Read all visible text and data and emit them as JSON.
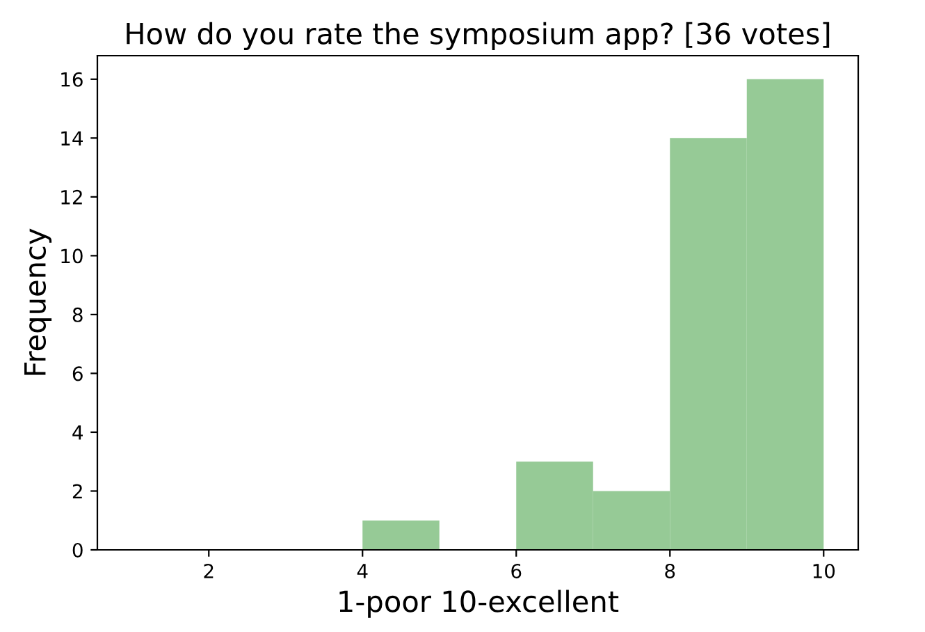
{
  "chart_data": {
    "type": "histogram",
    "title": "How do you rate the symposium app? [36 votes]",
    "xlabel": "1-poor 10-excellent",
    "ylabel": "Frequency",
    "bins": [
      1,
      2,
      3,
      4,
      5,
      6,
      7,
      8,
      9,
      10
    ],
    "values": [
      0,
      0,
      0,
      1,
      0,
      3,
      2,
      14,
      16
    ],
    "color": "#96ca96",
    "xlim": [
      0.55,
      10.45
    ],
    "ylim": [
      0,
      16.8
    ],
    "xticks": [
      2,
      4,
      6,
      8,
      10
    ],
    "yticks": [
      0,
      2,
      4,
      6,
      8,
      10,
      12,
      14,
      16
    ],
    "grid": false,
    "legend": false
  }
}
